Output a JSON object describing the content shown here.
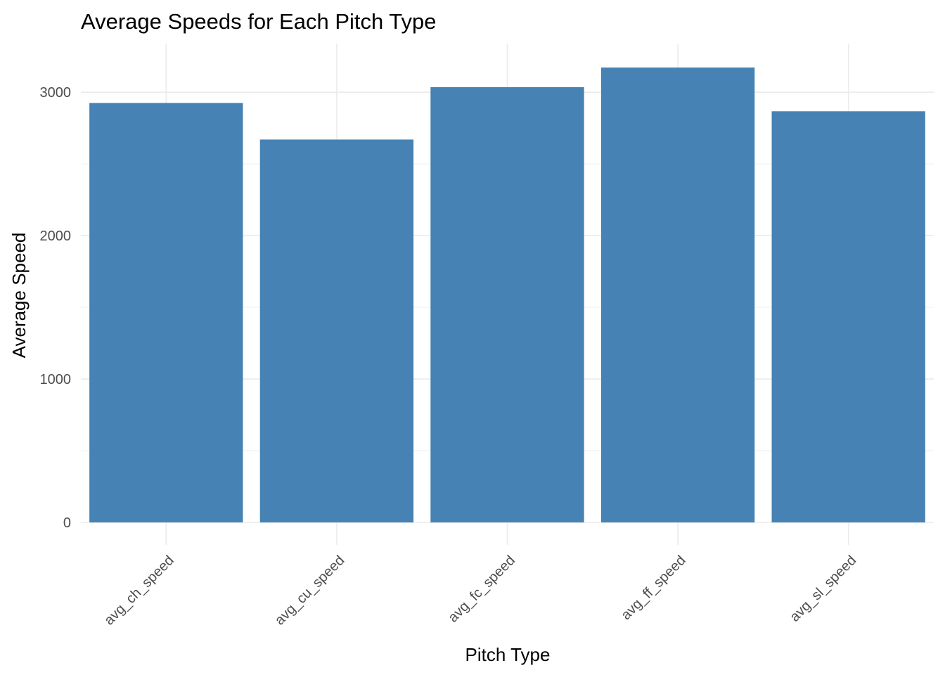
{
  "colors": {
    "bar": "#4682B4",
    "grid_major": "#ebebeb",
    "grid_minor": "#f2f2f2",
    "tick_text": "#4d4d4d"
  },
  "chart_data": {
    "type": "bar",
    "title": "Average Speeds for Each Pitch Type",
    "xlabel": "Pitch Type",
    "ylabel": "Average Speed",
    "categories": [
      "avg_ch_speed",
      "avg_cu_speed",
      "avg_fc_speed",
      "avg_ff_speed",
      "avg_sl_speed"
    ],
    "values": [
      2925,
      2670,
      3035,
      3172,
      2867
    ],
    "ylim": [
      0,
      3300
    ],
    "yticks": [
      0,
      1000,
      2000,
      3000
    ],
    "grid": true,
    "legend": "none"
  }
}
